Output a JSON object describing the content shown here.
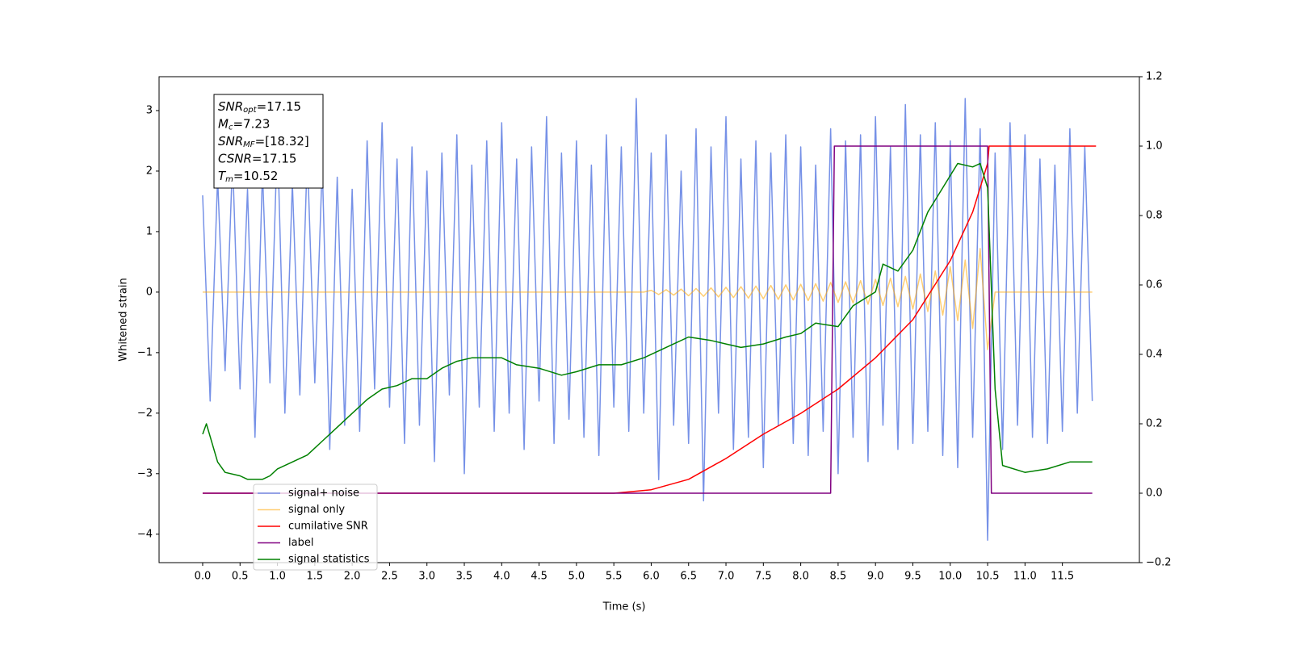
{
  "chart_data": {
    "type": "line",
    "xlabel": "Time (s)",
    "ylabel": "Whitened strain",
    "xlim": [
      -0.583,
      12.53
    ],
    "ylim": [
      -4.47,
      3.56
    ],
    "y2lim": [
      -0.2,
      1.2
    ],
    "xticks": [
      {
        "value": 0,
        "label": "0.0"
      },
      0.5,
      {
        "value": 1,
        "label": "1.0"
      },
      1.5,
      {
        "value": 2,
        "label": "2.0"
      },
      2.5,
      {
        "value": 3,
        "label": "3.0"
      },
      3.5,
      {
        "value": 4,
        "label": "4.0"
      },
      4.5,
      {
        "value": 5,
        "label": "5.0"
      },
      5.5,
      {
        "value": 6,
        "label": "6.0"
      },
      6.5,
      {
        "value": 7,
        "label": "7.0"
      },
      7.5,
      {
        "value": 8,
        "label": "8.0"
      },
      8.5,
      {
        "value": 9,
        "label": "9.0"
      },
      9.5,
      {
        "value": 10,
        "label": "10.0"
      },
      10.5,
      {
        "value": 11,
        "label": "11.0"
      },
      11.5
    ],
    "yticks": [
      {
        "value": -4,
        "label": "−4"
      },
      {
        "value": -3,
        "label": "−3"
      },
      {
        "value": -2,
        "label": "−2"
      },
      {
        "value": -1,
        "label": "−1"
      },
      0,
      1,
      2,
      3
    ],
    "y2ticks": [
      {
        "value": -0.2,
        "label": "−0.2"
      },
      {
        "value": 0,
        "label": "0.0"
      },
      0.2,
      0.4,
      0.6,
      0.8,
      {
        "value": 1,
        "label": "1.0"
      },
      1.2
    ],
    "legend": "lower left",
    "annotation": [
      {
        "main": "SNR",
        "sub": "opt",
        "value": "=17.15"
      },
      {
        "main": "M",
        "sub": "c",
        "value": "=7.23"
      },
      {
        "main": "SNR",
        "sub": "MF",
        "value": "=[18.32]"
      },
      {
        "main": "CSNR",
        "sub": null,
        "value": "=17.15"
      },
      {
        "main": "T",
        "sub": "m",
        "value": "=10.52"
      }
    ],
    "series": [
      {
        "name": "signal+ noise",
        "color": "#6f8be6",
        "opacity": 0.95,
        "x": [
          0,
          0.1,
          0.2,
          0.3,
          0.4,
          0.5,
          0.6,
          0.7,
          0.8,
          0.9,
          1,
          1.1,
          1.2,
          1.3,
          1.4,
          1.5,
          1.6,
          1.7,
          1.8,
          1.9,
          2,
          2.1,
          2.2,
          2.3,
          2.4,
          2.5,
          2.6,
          2.7,
          2.8,
          2.9,
          3,
          3.1,
          3.2,
          3.3,
          3.4,
          3.5,
          3.6,
          3.7,
          3.8,
          3.9,
          4,
          4.1,
          4.2,
          4.3,
          4.4,
          4.5,
          4.6,
          4.7,
          4.8,
          4.9,
          5,
          5.1,
          5.2,
          5.3,
          5.4,
          5.5,
          5.6,
          5.7,
          5.8,
          5.9,
          6,
          6.1,
          6.2,
          6.3,
          6.4,
          6.5,
          6.6,
          6.7,
          6.8,
          6.9,
          7,
          7.1,
          7.2,
          7.3,
          7.4,
          7.5,
          7.6,
          7.7,
          7.8,
          7.9,
          8,
          8.1,
          8.2,
          8.3,
          8.4,
          8.5,
          8.6,
          8.7,
          8.8,
          8.9,
          9,
          9.1,
          9.2,
          9.3,
          9.4,
          9.5,
          9.6,
          9.7,
          9.8,
          9.9,
          10,
          10.1,
          10.2,
          10.3,
          10.4,
          10.5,
          10.6,
          10.7,
          10.8,
          10.9,
          11,
          11.1,
          11.2,
          11.3,
          11.4,
          11.5,
          11.6,
          11.7,
          11.8,
          11.9
        ],
        "values": [
          1.6,
          -1.8,
          1.9,
          -1.3,
          2.2,
          -1.6,
          1.7,
          -2.4,
          2.0,
          -1.5,
          2.6,
          -2.0,
          1.8,
          -1.7,
          2.3,
          -1.5,
          2.1,
          -2.6,
          1.9,
          -2.2,
          1.7,
          -2.3,
          2.5,
          -1.6,
          2.8,
          -1.9,
          2.2,
          -2.5,
          2.4,
          -2.2,
          2.0,
          -2.8,
          2.3,
          -1.7,
          2.6,
          -3.0,
          2.1,
          -1.9,
          2.5,
          -2.3,
          2.8,
          -2.0,
          2.2,
          -2.6,
          2.4,
          -1.8,
          2.9,
          -2.5,
          2.3,
          -2.1,
          2.5,
          -2.4,
          2.1,
          -2.7,
          2.6,
          -1.9,
          2.4,
          -2.3,
          3.2,
          -2.0,
          2.3,
          -3.1,
          2.6,
          -2.2,
          2.0,
          -2.5,
          2.7,
          -3.45,
          2.4,
          -2.0,
          2.9,
          -2.6,
          2.2,
          -2.4,
          2.5,
          -2.9,
          2.3,
          -2.2,
          2.6,
          -2.5,
          2.4,
          -2.7,
          2.1,
          -2.3,
          2.7,
          -3.0,
          2.5,
          -2.4,
          2.6,
          -2.8,
          2.9,
          -2.2,
          2.4,
          -2.6,
          3.1,
          -2.5,
          2.6,
          -2.3,
          2.8,
          -2.7,
          2.5,
          -2.9,
          3.2,
          -2.4,
          2.7,
          -4.1,
          2.3,
          -2.6,
          2.8,
          -2.2,
          2.6,
          -2.4,
          2.2,
          -2.5,
          2.1,
          -2.3,
          2.7,
          -2.0,
          2.4,
          -1.8
        ]
      },
      {
        "name": "signal only",
        "color": "#ffa500",
        "opacity": 0.55,
        "x": [
          0,
          5.9,
          6,
          6.1,
          6.2,
          6.3,
          6.4,
          6.5,
          6.6,
          6.7,
          6.8,
          6.9,
          7,
          7.1,
          7.2,
          7.3,
          7.4,
          7.5,
          7.6,
          7.7,
          7.8,
          7.9,
          8,
          8.1,
          8.2,
          8.3,
          8.4,
          8.5,
          8.6,
          8.7,
          8.8,
          8.9,
          9,
          9.1,
          9.2,
          9.3,
          9.4,
          9.5,
          9.6,
          9.7,
          9.8,
          9.9,
          10,
          10.1,
          10.2,
          10.3,
          10.4,
          10.5,
          10.6,
          11.9
        ],
        "values": [
          0,
          0,
          0.03,
          -0.04,
          0.04,
          -0.05,
          0.05,
          -0.06,
          0.06,
          -0.07,
          0.07,
          -0.08,
          0.08,
          -0.09,
          0.09,
          -0.1,
          0.1,
          -0.11,
          0.11,
          -0.12,
          0.12,
          -0.13,
          0.13,
          -0.14,
          0.14,
          -0.15,
          0.16,
          -0.17,
          0.17,
          -0.18,
          0.19,
          -0.2,
          0.21,
          -0.22,
          0.23,
          -0.24,
          0.26,
          -0.28,
          0.3,
          -0.32,
          0.35,
          -0.38,
          0.42,
          -0.47,
          0.53,
          -0.6,
          0.72,
          -0.95,
          0,
          0
        ]
      },
      {
        "name": "cumilative SNR",
        "color": "#ff0000",
        "axis": "y2",
        "x": [
          0,
          5.5,
          6,
          6.5,
          7,
          7.5,
          8,
          8.5,
          9,
          9.5,
          10,
          10.3,
          10.5,
          10.52,
          11.95
        ],
        "values": [
          0,
          0,
          0.01,
          0.04,
          0.1,
          0.17,
          0.23,
          0.3,
          0.39,
          0.5,
          0.67,
          0.81,
          0.95,
          1,
          1
        ]
      },
      {
        "name": "label",
        "color": "#800080",
        "axis": "y2",
        "x": [
          0,
          8.4,
          8.45,
          10.5,
          10.55,
          11.9
        ],
        "values": [
          0,
          0,
          1,
          1,
          0,
          0
        ]
      },
      {
        "name": "signal statistics",
        "color": "#008000",
        "axis": "y2",
        "x": [
          0,
          0.05,
          0.2,
          0.3,
          0.5,
          0.6,
          0.8,
          0.9,
          1,
          1.2,
          1.4,
          1.6,
          1.8,
          2,
          2.2,
          2.4,
          2.6,
          2.8,
          3,
          3.2,
          3.4,
          3.6,
          3.8,
          4,
          4.2,
          4.5,
          4.8,
          5,
          5.3,
          5.6,
          5.9,
          6.1,
          6.3,
          6.5,
          6.8,
          7,
          7.2,
          7.5,
          7.8,
          8,
          8.2,
          8.5,
          8.7,
          9,
          9.1,
          9.3,
          9.5,
          9.7,
          9.9,
          10.1,
          10.3,
          10.4,
          10.5,
          10.6,
          10.7,
          11,
          11.3,
          11.6,
          11.9
        ],
        "values": [
          0.17,
          0.2,
          0.09,
          0.06,
          0.05,
          0.04,
          0.04,
          0.05,
          0.07,
          0.09,
          0.11,
          0.15,
          0.19,
          0.23,
          0.27,
          0.3,
          0.31,
          0.33,
          0.33,
          0.36,
          0.38,
          0.39,
          0.39,
          0.39,
          0.37,
          0.36,
          0.34,
          0.35,
          0.37,
          0.37,
          0.39,
          0.41,
          0.43,
          0.45,
          0.44,
          0.43,
          0.42,
          0.43,
          0.45,
          0.46,
          0.49,
          0.48,
          0.54,
          0.58,
          0.66,
          0.64,
          0.7,
          0.81,
          0.88,
          0.95,
          0.94,
          0.95,
          0.88,
          0.3,
          0.08,
          0.06,
          0.07,
          0.09,
          0.09
        ]
      }
    ]
  }
}
